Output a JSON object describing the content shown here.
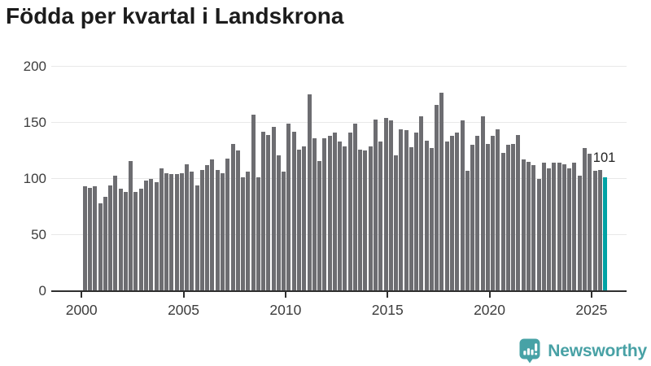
{
  "title": "Födda per kvartal i Landskrona",
  "annotation": {
    "last_value_label": "101"
  },
  "logo": {
    "name": "Newsworthy",
    "icon": "newsworthy-speech-bubble-chart-icon"
  },
  "colors": {
    "bar": "#6d6d71",
    "highlight_bar": "#00a2a4",
    "gridline": "#e8e8e8",
    "axis": "#2f2f2f",
    "title_text": "#1c1c1c",
    "tick_text": "#3d3d3d",
    "annotation_text": "#222222",
    "logo_teal": "#48a1a5"
  },
  "chart_data": {
    "type": "bar",
    "title": "Födda per kvartal i Landskrona",
    "xlabel": "",
    "ylabel": "",
    "x_period": "quarterly",
    "x_start": "2000 Q1",
    "x_end": "2025 Q3",
    "x_ticks": [
      "2000",
      "2005",
      "2010",
      "2015",
      "2020",
      "2025"
    ],
    "y_ticks": [
      0,
      50,
      100,
      150,
      200
    ],
    "ylim": [
      0,
      200
    ],
    "grid": true,
    "legend": "none",
    "highlight": {
      "index": 102,
      "period": "2025 Q3",
      "value": 101,
      "label": "101"
    },
    "series": [
      {
        "name": "Födda",
        "values": [
          93,
          92,
          93,
          78,
          84,
          94,
          103,
          91,
          88,
          116,
          88,
          91,
          98,
          100,
          97,
          109,
          105,
          104,
          104,
          105,
          113,
          106,
          94,
          108,
          112,
          117,
          108,
          105,
          118,
          131,
          125,
          101,
          106,
          157,
          101,
          142,
          139,
          146,
          121,
          106,
          149,
          142,
          126,
          129,
          175,
          136,
          116,
          136,
          138,
          141,
          133,
          129,
          141,
          149,
          126,
          125,
          129,
          153,
          133,
          154,
          152,
          121,
          144,
          143,
          128,
          141,
          156,
          134,
          127,
          166,
          177,
          133,
          138,
          141,
          152,
          107,
          130,
          138,
          156,
          131,
          138,
          144,
          123,
          130,
          131,
          139,
          117,
          115,
          112,
          100,
          114,
          109,
          114,
          114,
          113,
          109,
          114,
          103,
          127,
          122,
          107,
          108,
          101
        ]
      }
    ]
  }
}
